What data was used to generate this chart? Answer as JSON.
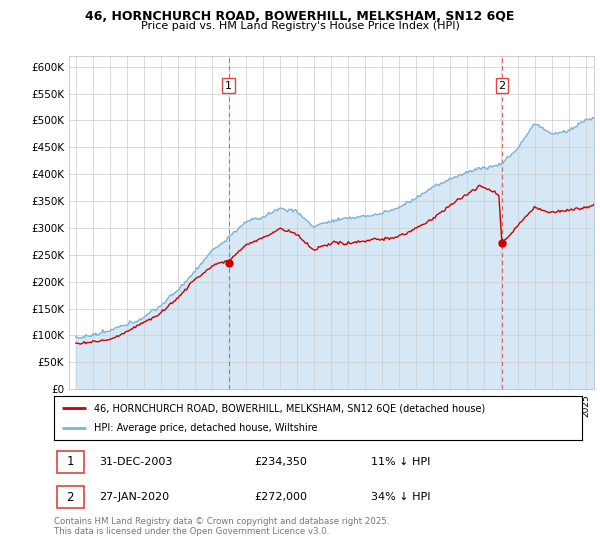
{
  "title_line1": "46, HORNCHURCH ROAD, BOWERHILL, MELKSHAM, SN12 6QE",
  "title_line2": "Price paid vs. HM Land Registry's House Price Index (HPI)",
  "hpi_color": "#7ab3d8",
  "hpi_fill_color": "#d6e8f5",
  "price_color": "#cc0000",
  "vline_color": "#dd4444",
  "background_color": "#ffffff",
  "grid_color": "#cccccc",
  "legend_label1": "46, HORNCHURCH ROAD, BOWERHILL, MELKSHAM, SN12 6QE (detached house)",
  "legend_label2": "HPI: Average price, detached house, Wiltshire",
  "footer": "Contains HM Land Registry data © Crown copyright and database right 2025.\nThis data is licensed under the Open Government Licence v3.0.",
  "ylim": [
    0,
    620000
  ],
  "yticks": [
    0,
    50000,
    100000,
    150000,
    200000,
    250000,
    300000,
    350000,
    400000,
    450000,
    500000,
    550000,
    600000
  ],
  "ytick_labels": [
    "£0",
    "£50K",
    "£100K",
    "£150K",
    "£200K",
    "£250K",
    "£300K",
    "£350K",
    "£400K",
    "£450K",
    "£500K",
    "£550K",
    "£600K"
  ],
  "sale1_year": 2004.0,
  "sale1_value": 234350,
  "sale2_year": 2020.08,
  "sale2_value": 272000,
  "start_year": 1995,
  "end_year": 2025
}
